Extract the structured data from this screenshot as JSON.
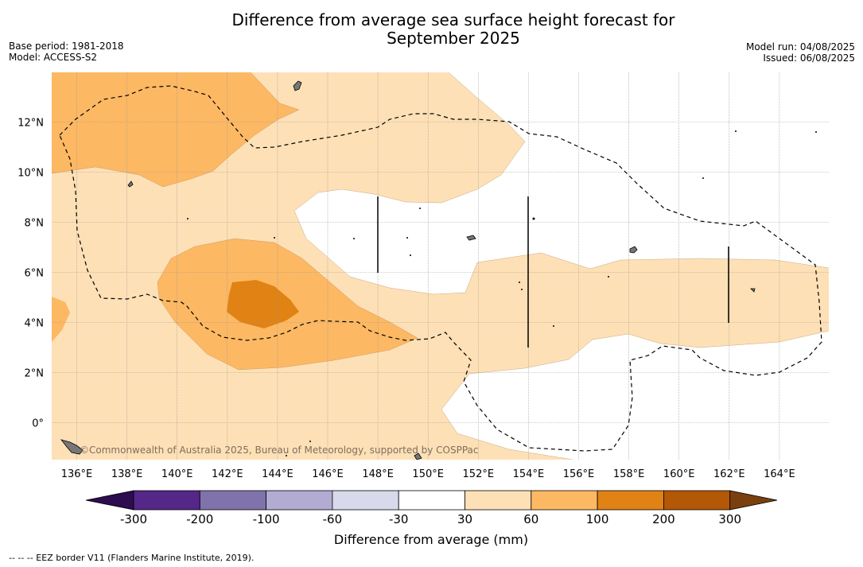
{
  "title_line1": "Difference from average sea surface height forecast for",
  "title_line2": "September 2025",
  "meta_left": {
    "base_period": "Base period: 1981-2018",
    "model": "Model: ACCESS-S2"
  },
  "meta_right": {
    "model_run": "Model run: 04/08/2025",
    "issued": "Issued: 06/08/2025"
  },
  "credit": "©Commonwealth of Australia 2025, Bureau of Meteorology, supported by COSPPac",
  "map": {
    "lon_ticks": [
      "136°E",
      "138°E",
      "140°E",
      "142°E",
      "144°E",
      "146°E",
      "148°E",
      "150°E",
      "152°E",
      "154°E",
      "156°E",
      "158°E",
      "160°E",
      "162°E",
      "164°E"
    ],
    "lat_ticks": [
      "12°N",
      "10°N",
      "8°N",
      "6°N",
      "4°N",
      "2°N",
      "0°"
    ]
  },
  "colorbar": {
    "title": "Difference from average (mm)",
    "tick_labels": [
      "-300",
      "-200",
      "-100",
      "-60",
      "-30",
      "30",
      "60",
      "100",
      "200",
      "300"
    ],
    "under_color": "#2d0c4f",
    "over_color": "#7a3f0f",
    "bins": [
      {
        "color": "#542788"
      },
      {
        "color": "#8073ac"
      },
      {
        "color": "#b2abd2"
      },
      {
        "color": "#d8daeb"
      },
      {
        "color": "#ffffff"
      },
      {
        "color": "#fee0b6"
      },
      {
        "color": "#fdb863"
      },
      {
        "color": "#e08214"
      },
      {
        "color": "#b35806"
      }
    ]
  },
  "eez_legend": "--  --  -- EEZ border V11 (Flanders Marine Institute, 2019)."
}
